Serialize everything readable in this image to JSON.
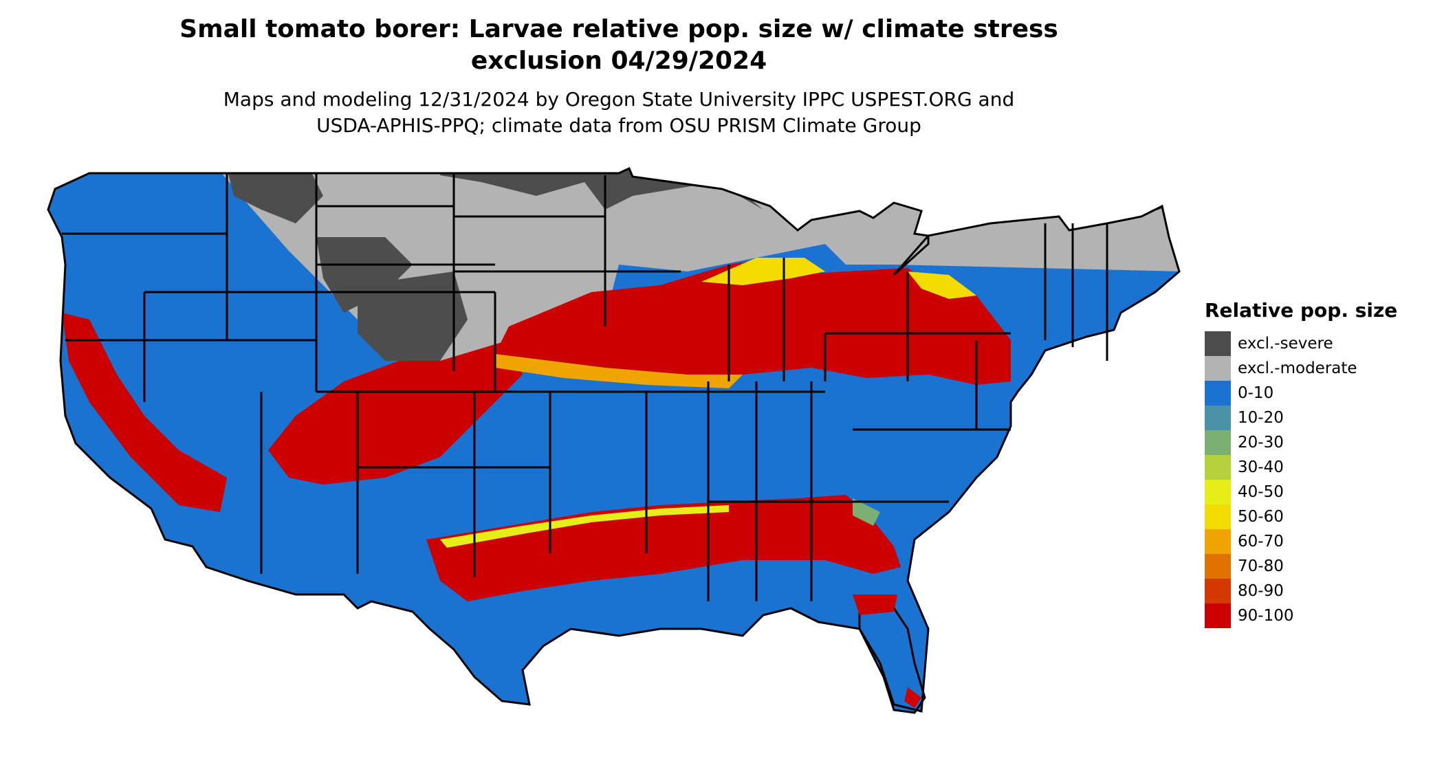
{
  "title_line1": "Small tomato borer: Larvae relative pop. size w/ climate stress",
  "title_line2": "exclusion 04/29/2024",
  "subtitle_line1": "Maps and modeling 12/31/2024 by Oregon State University IPPC USPEST.ORG and",
  "subtitle_line2": "USDA-APHIS-PPQ; climate data from OSU PRISM Climate Group",
  "legend": {
    "title": "Relative pop. size",
    "items": [
      {
        "label": "excl.-severe",
        "color": "#4d4d4d"
      },
      {
        "label": "excl.-moderate",
        "color": "#b3b3b3"
      },
      {
        "label": "0-10",
        "color": "#1a73d1"
      },
      {
        "label": "10-20",
        "color": "#4a92a8"
      },
      {
        "label": "20-30",
        "color": "#7bb072"
      },
      {
        "label": "30-40",
        "color": "#b5d13c"
      },
      {
        "label": "40-50",
        "color": "#e6ee18"
      },
      {
        "label": "50-60",
        "color": "#f5dc00"
      },
      {
        "label": "60-70",
        "color": "#f0a400"
      },
      {
        "label": "70-80",
        "color": "#e07200"
      },
      {
        "label": "80-90",
        "color": "#d43a00"
      },
      {
        "label": "90-100",
        "color": "#cc0000"
      }
    ]
  }
}
